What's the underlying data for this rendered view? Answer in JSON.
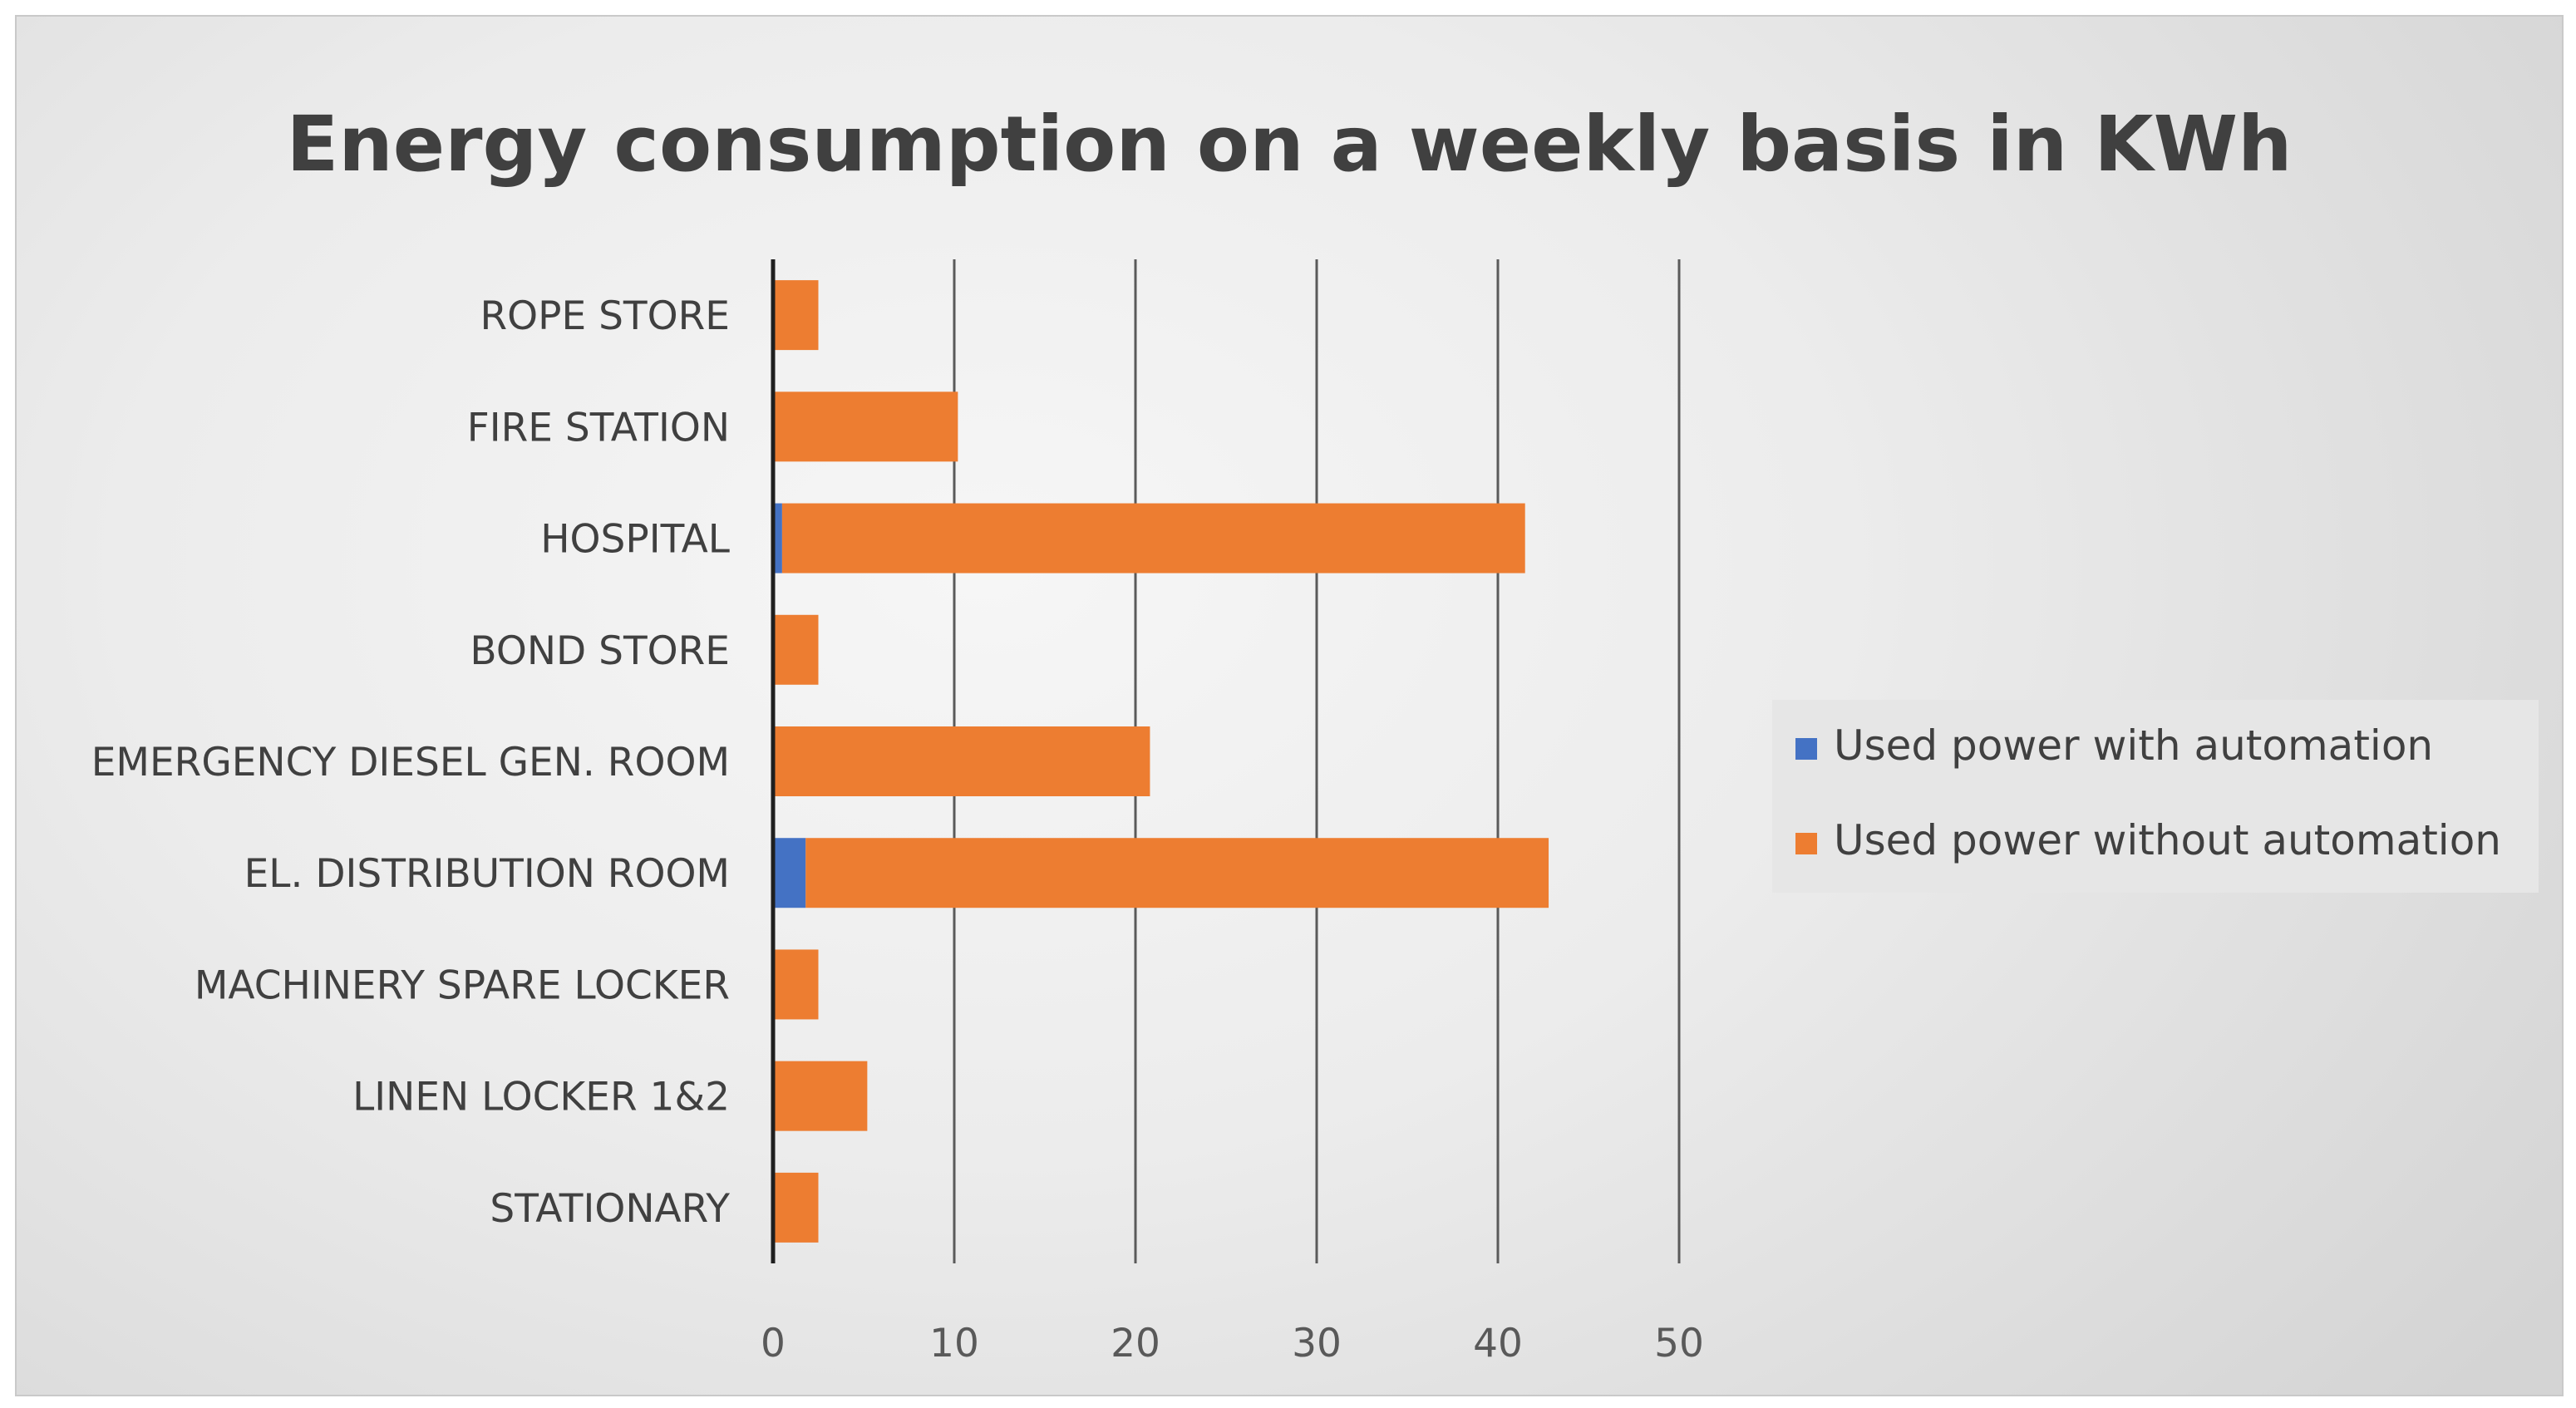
{
  "chart_data": {
    "type": "bar",
    "orientation": "horizontal",
    "stacked": true,
    "title": "Energy consumption on a weekly basis in KWh",
    "categories": [
      "ROPE STORE",
      "FIRE STATION",
      "HOSPITAL",
      "BOND STORE",
      "EMERGENCY DIESEL GEN. ROOM",
      "EL. DISTRIBUTION ROOM",
      "MACHINERY SPARE LOCKER",
      "LINEN LOCKER 1&2",
      "STATIONARY"
    ],
    "series": [
      {
        "name": "Used power with automation",
        "color": "#4472c4",
        "values": [
          0,
          0,
          0.5,
          0,
          0,
          1.8,
          0,
          0,
          0
        ]
      },
      {
        "name": "Used power without automation",
        "color": "#ed7d31",
        "values": [
          2.5,
          10.2,
          41.0,
          2.5,
          20.8,
          41.0,
          2.5,
          5.2,
          2.5
        ]
      }
    ],
    "xlim": [
      0,
      50
    ],
    "xticks": [
      0,
      10,
      20,
      30,
      40,
      50
    ],
    "xlabel": "",
    "ylabel": "",
    "grid": "vertical",
    "legend": "right"
  }
}
